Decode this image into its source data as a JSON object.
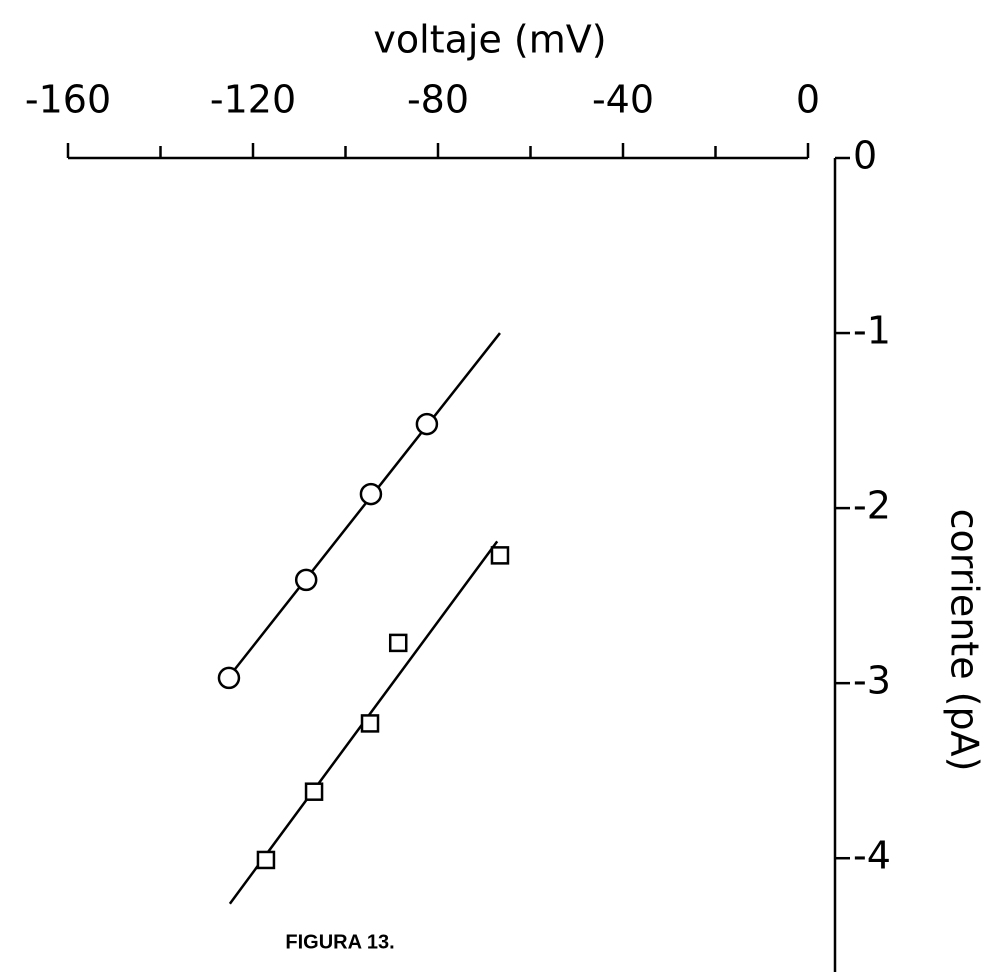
{
  "chart_data": {
    "type": "scatter",
    "x_label": "voltaje (mV)",
    "y_label": "corriente (pA)",
    "caption": "FIGURA 13.",
    "xlim": [
      -160,
      0
    ],
    "xticks": [
      -160,
      -120,
      -80,
      -40,
      0
    ],
    "xminorticks": [
      -140,
      -100,
      -60,
      -20
    ],
    "ylim": [
      -4.65,
      0
    ],
    "yticks": [
      0,
      -1,
      -2,
      -3,
      -4
    ],
    "color": "#000000",
    "series": [
      {
        "marker": "circle",
        "x": [
          -125.2,
          -108.5,
          -94.5,
          -82.4
        ],
        "values": [
          -2.97,
          -2.41,
          -1.92,
          -1.52
        ]
      },
      {
        "marker": "square",
        "x": [
          -66.6,
          -88.6,
          -94.7,
          -106.8,
          -117.2
        ],
        "values": [
          -2.27,
          -2.77,
          -3.23,
          -3.62,
          -4.01
        ]
      }
    ],
    "fit_lines": [
      {
        "x": [
          -124.5,
          -66.6
        ],
        "values": [
          -2.94,
          -1.0
        ]
      },
      {
        "x": [
          -125,
          -67.2
        ],
        "values": [
          -4.26,
          -2.19
        ]
      }
    ]
  }
}
